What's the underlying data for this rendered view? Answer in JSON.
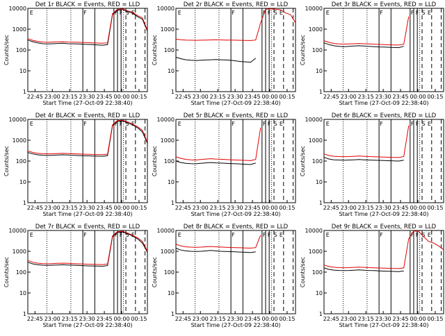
{
  "colors": {
    "events": "#000000",
    "lld": "#e00000",
    "axis": "#000000"
  },
  "chart_data": [
    {
      "type": "line",
      "title": "Det 1r BLACK = Events, RED = LLD",
      "xlabel": "Start Time (27-Oct-09 22:38:40)",
      "ylabel": "Counts/sec",
      "yscale": "log",
      "ylim": [
        1,
        10000
      ],
      "yticks": [
        "1",
        "10",
        "100",
        "1000",
        "10000"
      ],
      "xticks": [
        "22:45",
        "23:00",
        "23:15",
        "23:30",
        "23:45",
        "00:00",
        "00:15"
      ],
      "flags": [
        "E",
        "F",
        "F",
        "F",
        "S",
        "E"
      ],
      "series": [
        {
          "name": "Events",
          "color": "#000000",
          "values": [
            300,
            250,
            220,
            200,
            195,
            200,
            205,
            210,
            200,
            198,
            195,
            190,
            185,
            180,
            175,
            170,
            180,
            5000,
            8000,
            9000,
            7000,
            6000,
            4000,
            3000,
            800
          ]
        },
        {
          "name": "LLD",
          "color": "#e00000",
          "values": [
            350,
            290,
            260,
            240,
            235,
            240,
            245,
            250,
            240,
            238,
            235,
            230,
            225,
            220,
            215,
            210,
            220,
            5500,
            9000,
            9500,
            7500,
            6500,
            4500,
            3500,
            900
          ]
        }
      ]
    },
    {
      "type": "line",
      "title": "Det 2r BLACK = Events, RED = LLD",
      "xlabel": "Start Time (27-Oct-09 22:38:40)",
      "ylabel": "Counts/sec",
      "yscale": "log",
      "ylim": [
        1,
        10000
      ],
      "yticks": [
        "1",
        "10",
        "100",
        "1000",
        "10000"
      ],
      "xticks": [
        "22:45",
        "23:00",
        "23:15",
        "23:30",
        "23:45",
        "00:00",
        "00:15"
      ],
      "flags": [
        "E",
        "F",
        "F",
        "F",
        "S",
        "E"
      ],
      "series": [
        {
          "name": "Events",
          "color": "#000000",
          "values": [
            45,
            38,
            34,
            32,
            31,
            32,
            33,
            34,
            35,
            34,
            33,
            32,
            30,
            28,
            27,
            26,
            40,
            null,
            null,
            null,
            null,
            null,
            null,
            null,
            null
          ]
        },
        {
          "name": "LLD",
          "color": "#e00000",
          "values": [
            330,
            310,
            300,
            295,
            290,
            295,
            300,
            305,
            310,
            305,
            300,
            298,
            295,
            290,
            288,
            285,
            300,
            2000,
            9000,
            9500,
            9000,
            8500,
            6000,
            5000,
            2000
          ]
        }
      ]
    },
    {
      "type": "line",
      "title": "Det 3r BLACK = Events, RED = LLD",
      "xlabel": "Start Time (27-Oct-09 22:38:40)",
      "ylabel": "Counts/sec",
      "yscale": "log",
      "ylim": [
        1,
        10000
      ],
      "yticks": [
        "1",
        "10",
        "100",
        "1000",
        "10000"
      ],
      "xticks": [
        "22:45",
        "23:00",
        "23:15",
        "23:30",
        "23:45",
        "00:00",
        "00:15"
      ],
      "flags": [
        "E",
        "F",
        "F",
        "F",
        "S",
        "E"
      ],
      "series": [
        {
          "name": "Events",
          "color": "#000000",
          "values": [
            220,
            180,
            160,
            150,
            145,
            150,
            155,
            160,
            155,
            150,
            145,
            140,
            138,
            135,
            132,
            130,
            150,
            null,
            null,
            null,
            null,
            null,
            null,
            null,
            null
          ]
        },
        {
          "name": "LLD",
          "color": "#e00000",
          "values": [
            280,
            230,
            205,
            195,
            190,
            195,
            200,
            205,
            200,
            195,
            190,
            185,
            182,
            178,
            175,
            172,
            190,
            4000,
            null,
            null,
            null,
            null,
            null,
            null,
            null
          ]
        }
      ]
    },
    {
      "type": "line",
      "title": "Det 4r BLACK = Events, RED = LLD",
      "xlabel": "Start Time (27-Oct-09 22:38:40)",
      "ylabel": "Counts/sec",
      "yscale": "log",
      "ylim": [
        1,
        10000
      ],
      "yticks": [
        "1",
        "10",
        "100",
        "1000",
        "10000"
      ],
      "xticks": [
        "22:45",
        "23:00",
        "23:15",
        "23:30",
        "23:45",
        "00:00",
        "00:15"
      ],
      "flags": [
        "E",
        "F",
        "F",
        "F",
        "S",
        "E"
      ],
      "series": [
        {
          "name": "Events",
          "color": "#000000",
          "values": [
            260,
            220,
            200,
            190,
            185,
            190,
            195,
            200,
            195,
            190,
            185,
            180,
            178,
            175,
            172,
            170,
            180,
            5000,
            8000,
            8500,
            7000,
            5500,
            4000,
            2500,
            700
          ]
        },
        {
          "name": "LLD",
          "color": "#e00000",
          "values": [
            310,
            260,
            235,
            225,
            220,
            225,
            230,
            235,
            230,
            225,
            220,
            215,
            212,
            208,
            205,
            202,
            215,
            5500,
            8800,
            9200,
            7500,
            6000,
            4500,
            3000,
            800
          ]
        }
      ]
    },
    {
      "type": "line",
      "title": "Det 5r BLACK = Events, RED = LLD",
      "xlabel": "Start Time (27-Oct-09 22:38:40)",
      "ylabel": "Counts/sec",
      "yscale": "log",
      "ylim": [
        1,
        10000
      ],
      "yticks": [
        "1",
        "10",
        "100",
        "1000",
        "10000"
      ],
      "xticks": [
        "22:45",
        "23:00",
        "23:15",
        "23:30",
        "23:45",
        "00:00",
        "00:15"
      ],
      "flags": [
        "E",
        "F",
        "F",
        "F",
        "S",
        "E"
      ],
      "series": [
        {
          "name": "Events",
          "color": "#000000",
          "values": [
            100,
            85,
            78,
            75,
            74,
            78,
            82,
            85,
            82,
            80,
            78,
            76,
            74,
            72,
            70,
            68,
            80,
            null,
            null,
            null,
            null,
            null,
            null,
            null,
            null
          ]
        },
        {
          "name": "LLD",
          "color": "#e00000",
          "values": [
            160,
            135,
            120,
            115,
            112,
            118,
            125,
            130,
            125,
            122,
            118,
            115,
            112,
            110,
            108,
            105,
            120,
            4000,
            null,
            null,
            null,
            null,
            null,
            null,
            null
          ]
        }
      ]
    },
    {
      "type": "line",
      "title": "Det 6r BLACK = Events, RED = LLD",
      "xlabel": "Start Time (27-Oct-09 22:38:40)",
      "ylabel": "Counts/sec",
      "yscale": "log",
      "ylim": [
        1,
        10000
      ],
      "yticks": [
        "1",
        "10",
        "100",
        "1000",
        "10000"
      ],
      "xticks": [
        "22:45",
        "23:00",
        "23:15",
        "23:30",
        "23:45",
        "00:00",
        "00:15"
      ],
      "flags": [
        "E",
        "F",
        "F",
        "F",
        "S",
        "E"
      ],
      "series": [
        {
          "name": "Events",
          "color": "#000000",
          "values": [
            150,
            125,
            115,
            112,
            110,
            112,
            115,
            118,
            115,
            112,
            110,
            108,
            106,
            104,
            102,
            100,
            110,
            null,
            null,
            null,
            null,
            null,
            null,
            null,
            null
          ]
        },
        {
          "name": "LLD",
          "color": "#e00000",
          "values": [
            220,
            185,
            170,
            165,
            162,
            165,
            170,
            175,
            170,
            165,
            162,
            158,
            155,
            152,
            150,
            148,
            165,
            5000,
            null,
            null,
            null,
            null,
            null,
            null,
            null
          ]
        }
      ]
    },
    {
      "type": "line",
      "title": "Det 7r BLACK = Events, RED = LLD",
      "xlabel": "Start Time (27-Oct-09 22:38:40)",
      "ylabel": "Counts/sec",
      "yscale": "log",
      "ylim": [
        1,
        10000
      ],
      "yticks": [
        "1",
        "10",
        "100",
        "1000",
        "10000"
      ],
      "xticks": [
        "22:45",
        "23:00",
        "23:15",
        "23:30",
        "23:45",
        "00:00",
        "00:15"
      ],
      "flags": [
        "E",
        "F",
        "F",
        "F",
        "S",
        "E"
      ],
      "series": [
        {
          "name": "Events",
          "color": "#000000",
          "values": [
            300,
            250,
            225,
            215,
            210,
            215,
            220,
            225,
            220,
            215,
            210,
            205,
            200,
            198,
            195,
            192,
            205,
            5000,
            8000,
            8500,
            7000,
            5500,
            4000,
            2500,
            900
          ]
        },
        {
          "name": "LLD",
          "color": "#e00000",
          "values": [
            360,
            300,
            270,
            258,
            252,
            258,
            265,
            270,
            265,
            258,
            252,
            246,
            240,
            237,
            234,
            230,
            245,
            5500,
            8800,
            9200,
            7500,
            6000,
            4500,
            3000,
            1000
          ]
        }
      ]
    },
    {
      "type": "line",
      "title": "Det 8r BLACK = Events, RED = LLD",
      "xlabel": "Start Time (27-Oct-09 22:38:40)",
      "ylabel": "Counts/sec",
      "yscale": "log",
      "ylim": [
        1,
        10000
      ],
      "yticks": [
        "1",
        "10",
        "100",
        "1000",
        "10000"
      ],
      "xticks": [
        "22:45",
        "23:00",
        "23:15",
        "23:30",
        "23:45",
        "00:00",
        "00:15"
      ],
      "flags": [
        "E",
        "F",
        "F",
        "F",
        "S",
        "E"
      ],
      "series": [
        {
          "name": "Events",
          "color": "#000000",
          "values": [
            1400,
            1150,
            1050,
            1000,
            980,
            1000,
            1050,
            1100,
            1050,
            1000,
            980,
            960,
            940,
            920,
            900,
            880,
            950,
            null,
            null,
            null,
            null,
            null,
            null,
            null,
            null
          ]
        },
        {
          "name": "LLD",
          "color": "#e00000",
          "values": [
            2200,
            1800,
            1650,
            1580,
            1550,
            1580,
            1650,
            1700,
            1650,
            1600,
            1560,
            1530,
            1500,
            1480,
            1450,
            1420,
            1500,
            6000,
            null,
            null,
            null,
            null,
            null,
            null,
            null
          ]
        }
      ]
    },
    {
      "type": "line",
      "title": "Det 9r BLACK = Events, RED = LLD",
      "xlabel": "Start Time (27-Oct-09 22:38:40)",
      "ylabel": "Counts/sec",
      "yscale": "log",
      "ylim": [
        1,
        10000
      ],
      "yticks": [
        "1",
        "10",
        "100",
        "1000",
        "10000"
      ],
      "xticks": [
        "22:45",
        "23:00",
        "23:15",
        "23:30",
        "23:45",
        "00:00",
        "00:15"
      ],
      "flags": [
        "E",
        "F",
        "F",
        "F",
        "S",
        "E"
      ],
      "series": [
        {
          "name": "Events",
          "color": "#000000",
          "values": [
            160,
            135,
            125,
            120,
            118,
            120,
            124,
            128,
            124,
            120,
            118,
            115,
            112,
            110,
            108,
            106,
            115,
            null,
            null,
            null,
            null,
            null,
            null,
            null,
            null
          ]
        },
        {
          "name": "LLD",
          "color": "#e00000",
          "values": [
            220,
            185,
            172,
            165,
            162,
            165,
            170,
            175,
            170,
            165,
            162,
            158,
            155,
            152,
            150,
            148,
            160,
            4000,
            9500,
            9000,
            5000,
            3000,
            2500,
            1800,
            1200
          ]
        }
      ]
    }
  ]
}
